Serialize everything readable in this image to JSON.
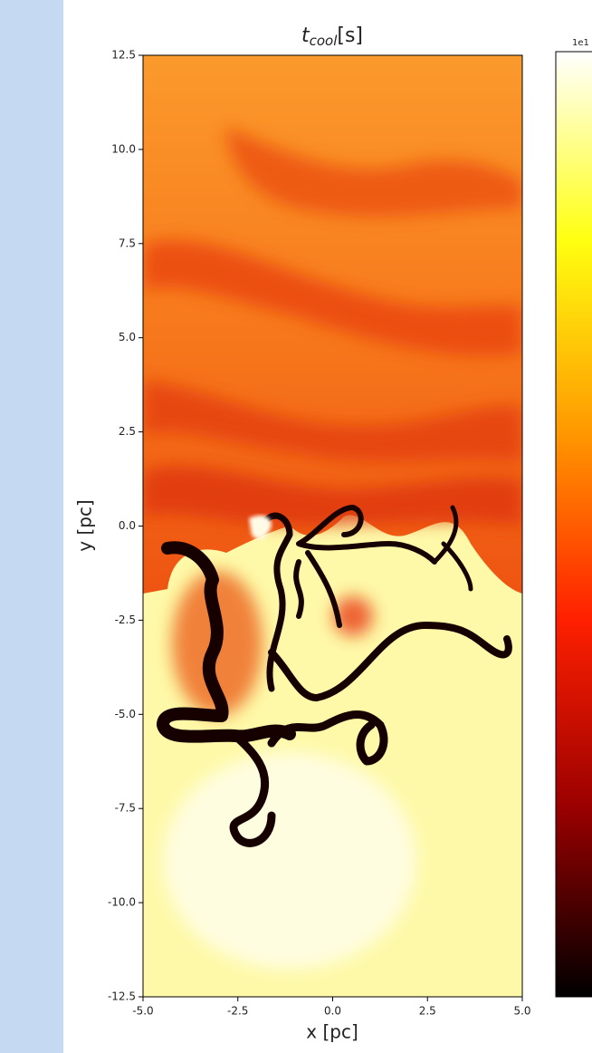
{
  "chart_data": {
    "type": "heatmap",
    "title": {
      "base": "t",
      "sub": "cool",
      "unit": "[s]"
    },
    "xlabel": "x [pc]",
    "ylabel": "y [pc]",
    "xlim": [
      -5,
      5
    ],
    "xticks": [
      {
        "value": -5,
        "label": "-5.0"
      },
      {
        "value": -2.5,
        "label": "-2.5"
      },
      {
        "value": 0,
        "label": "0.0"
      },
      {
        "value": 2.5,
        "label": "2.5"
      },
      {
        "value": 5,
        "label": "5.0"
      }
    ],
    "ylim": [
      -12.5,
      12.5
    ],
    "yticks": [
      {
        "value": -12.5,
        "label": "-12.5"
      },
      {
        "value": -10,
        "label": "-10.0"
      },
      {
        "value": -7.5,
        "label": "-7.5"
      },
      {
        "value": -5,
        "label": "-5.0"
      },
      {
        "value": -2.5,
        "label": "-2.5"
      },
      {
        "value": 0,
        "label": "0.0"
      },
      {
        "value": 2.5,
        "label": "2.5"
      },
      {
        "value": 5,
        "label": "5.0"
      },
      {
        "value": 7.5,
        "label": "7.5"
      },
      {
        "value": 10,
        "label": "10.0"
      },
      {
        "value": 12.5,
        "label": "12.5"
      }
    ],
    "colorbar_offset_label": "1e1",
    "colormap": [
      "#000000",
      "#9a0000",
      "#ff2000",
      "#ff9a00",
      "#ffff10",
      "#ffffff"
    ]
  }
}
